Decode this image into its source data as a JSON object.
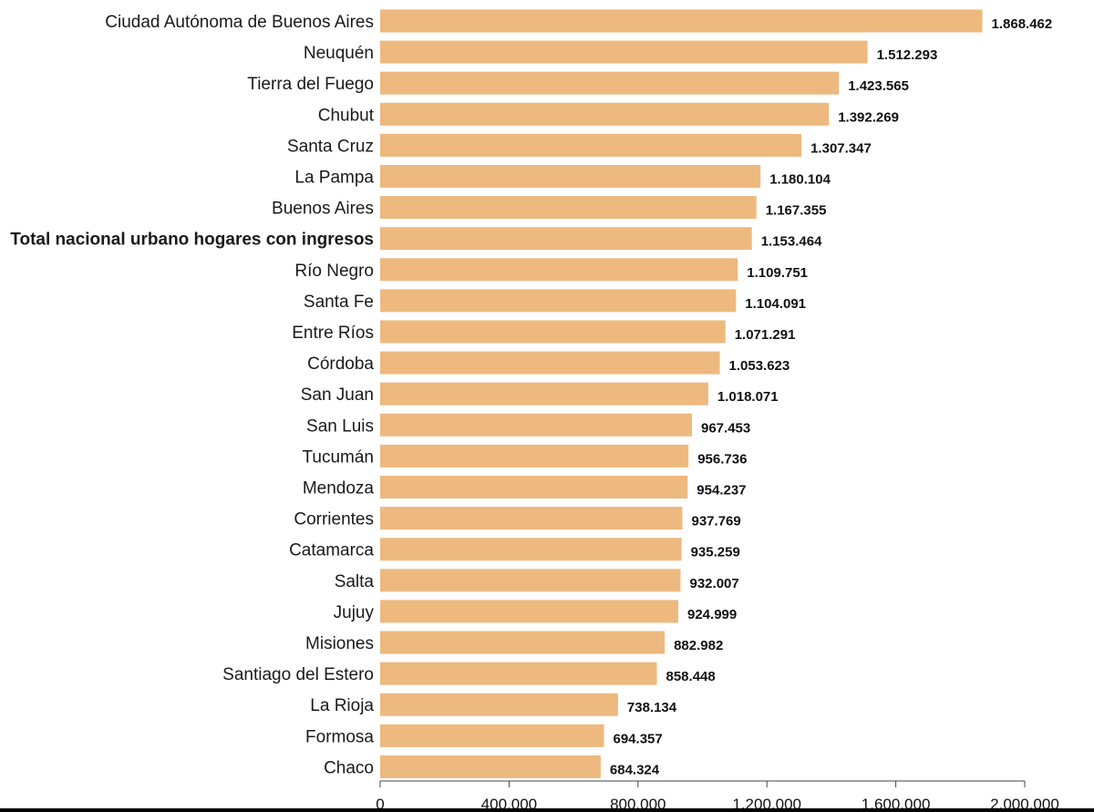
{
  "chart_data": {
    "type": "bar",
    "orientation": "horizontal",
    "bar_color": "#EDB97F",
    "highlight_category": "Total nacional urbano hogares con ingresos",
    "xlim": [
      0,
      2000000
    ],
    "xticks": [
      0,
      400000,
      800000,
      1200000,
      1600000,
      2000000
    ],
    "xtick_labels": [
      "0",
      "400.000",
      "800.000",
      "1.200.000",
      "1.600.000",
      "2.000.000"
    ],
    "categories": [
      "Ciudad Autónoma de Buenos Aires",
      "Neuquén",
      "Tierra del Fuego",
      "Chubut",
      "Santa Cruz",
      "La Pampa",
      "Buenos Aires",
      "Total nacional urbano hogares con ingresos",
      "Río Negro",
      "Santa Fe",
      "Entre Ríos",
      "Córdoba",
      "San Juan",
      "San Luis",
      "Tucumán",
      "Mendoza",
      "Corrientes",
      "Catamarca",
      "Salta",
      "Jujuy",
      "Misiones",
      "Santiago del Estero",
      "La Rioja",
      "Formosa",
      "Chaco"
    ],
    "values": [
      1868462,
      1512293,
      1423565,
      1392269,
      1307347,
      1180104,
      1167355,
      1153464,
      1109751,
      1104091,
      1071291,
      1053623,
      1018071,
      967453,
      956736,
      954237,
      937769,
      935259,
      932007,
      924999,
      882982,
      858448,
      738134,
      694357,
      684324
    ],
    "value_labels": [
      "1.868.462",
      "1.512.293",
      "1.423.565",
      "1.392.269",
      "1.307.347",
      "1.180.104",
      "1.167.355",
      "1.153.464",
      "1.109.751",
      "1.104.091",
      "1.071.291",
      "1.053.623",
      "1.018.071",
      "967.453",
      "956.736",
      "954.237",
      "937.769",
      "935.259",
      "932.007",
      "924.999",
      "882.982",
      "858.448",
      "738.134",
      "694.357",
      "684.324"
    ],
    "grid": false
  }
}
